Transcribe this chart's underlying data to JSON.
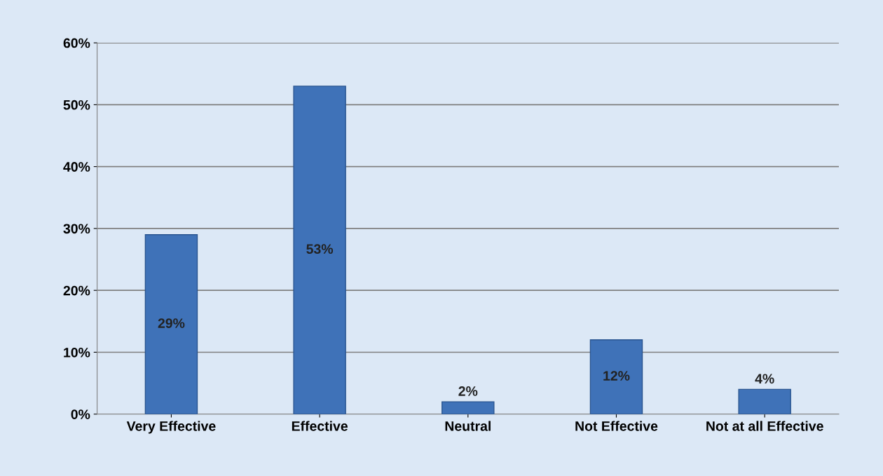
{
  "chart_data": {
    "type": "bar",
    "categories": [
      "Very Effective",
      "Effective",
      "Neutral",
      "Not Effective",
      "Not at all Effective"
    ],
    "values": [
      29,
      53,
      2,
      12,
      4
    ],
    "value_labels": [
      "29%",
      "53%",
      "2%",
      "12%",
      "4%"
    ],
    "color": "#3f72b8",
    "ylim": [
      0,
      60
    ],
    "yticks": [
      {
        "value": 0,
        "label": "0%"
      },
      {
        "value": 10,
        "label": "10%"
      },
      {
        "value": 20,
        "label": "20%"
      },
      {
        "value": 30,
        "label": "30%"
      },
      {
        "value": 40,
        "label": "40%"
      },
      {
        "value": 50,
        "label": "50%"
      },
      {
        "value": 60,
        "label": "60%"
      }
    ],
    "grid": "y",
    "legend": false
  }
}
